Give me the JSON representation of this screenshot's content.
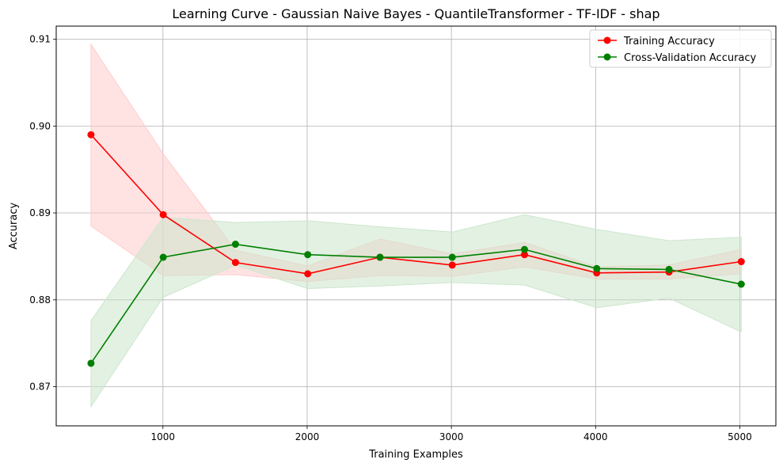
{
  "chart_data": {
    "type": "line",
    "title": "Learning Curve - Gaussian Naive Bayes - QuantileTransformer - TF-IDF - shap",
    "xlabel": "Training Examples",
    "ylabel": "Accuracy",
    "xlim": [
      260,
      5250
    ],
    "ylim": [
      0.8655,
      0.9115
    ],
    "xticks": [
      1000,
      2000,
      3000,
      4000,
      5000
    ],
    "yticks": [
      0.87,
      0.88,
      0.89,
      0.9,
      0.91
    ],
    "ytick_labels": [
      "0.87",
      "0.88",
      "0.89",
      "0.90",
      "0.91"
    ],
    "grid": true,
    "legend_position": "top-right",
    "x": [
      501,
      1002,
      1503,
      2004,
      2505,
      3006,
      3507,
      4008,
      4509,
      5010
    ],
    "series": [
      {
        "name": "Training Accuracy",
        "color": "#ff0000",
        "band_color": "#ffcccc",
        "values": [
          0.899,
          0.8898,
          0.8843,
          0.883,
          0.8849,
          0.884,
          0.8852,
          0.8831,
          0.8832,
          0.8844
        ],
        "lower": [
          0.8885,
          0.8828,
          0.8829,
          0.8821,
          0.8828,
          0.8827,
          0.8838,
          0.8824,
          0.8824,
          0.883
        ],
        "upper": [
          0.9094,
          0.8968,
          0.8857,
          0.8839,
          0.887,
          0.8853,
          0.8866,
          0.8838,
          0.884,
          0.8858
        ]
      },
      {
        "name": "Cross-Validation Accuracy",
        "color": "#008000",
        "band_color": "#cce6cc",
        "values": [
          0.8727,
          0.8849,
          0.8864,
          0.8852,
          0.8849,
          0.8849,
          0.8858,
          0.8836,
          0.8835,
          0.8818
        ],
        "lower": [
          0.8677,
          0.8803,
          0.884,
          0.8813,
          0.8816,
          0.882,
          0.8817,
          0.8791,
          0.8802,
          0.8763
        ],
        "upper": [
          0.8776,
          0.8895,
          0.8889,
          0.8891,
          0.8884,
          0.8878,
          0.8898,
          0.8881,
          0.8868,
          0.8872
        ]
      }
    ]
  }
}
